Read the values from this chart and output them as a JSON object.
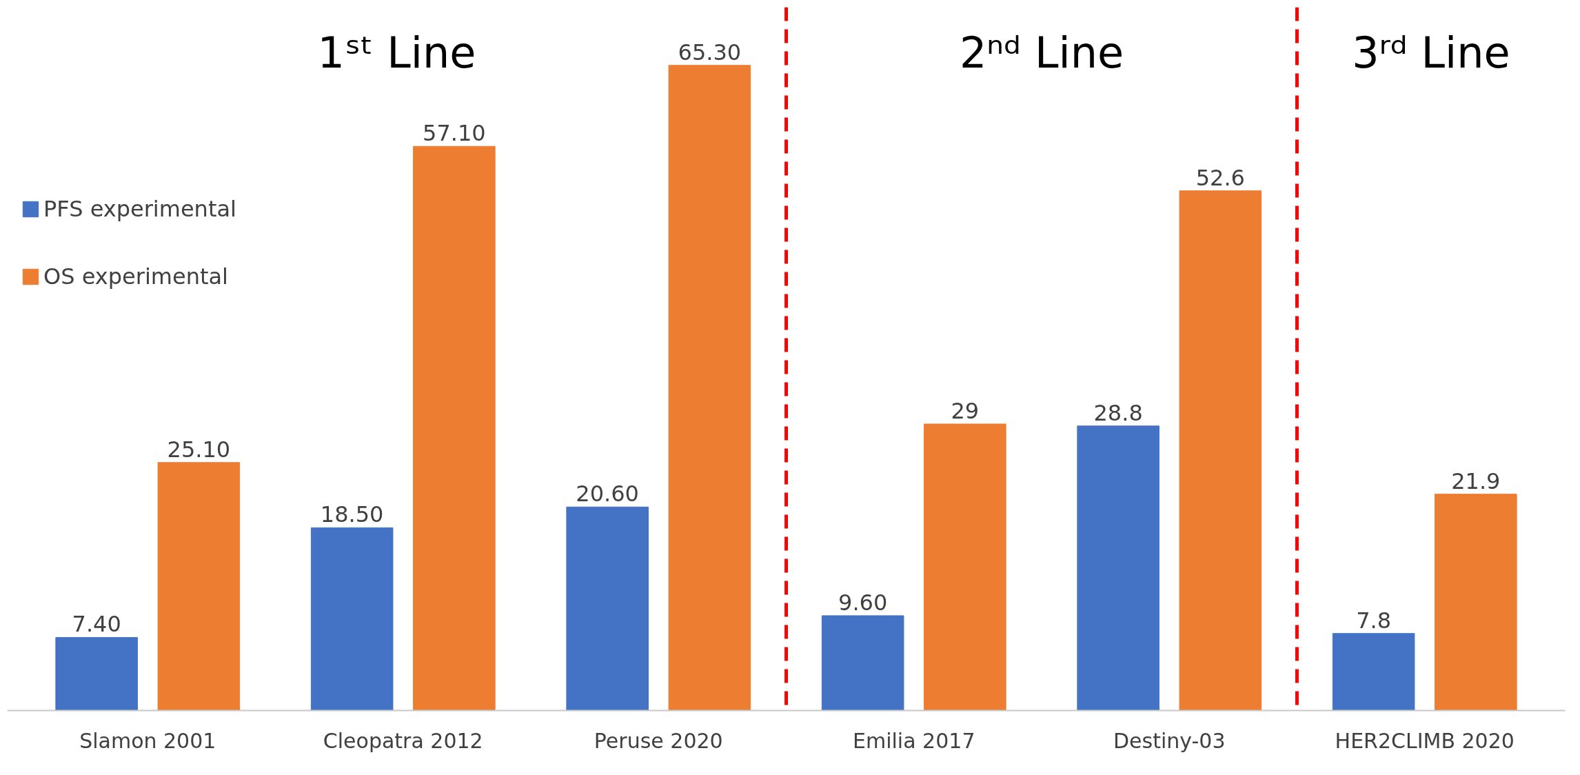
{
  "chart_data": {
    "type": "bar",
    "categories": [
      "Slamon 2001",
      "Cleopatra 2012",
      "Peruse 2020",
      "Emilia 2017",
      "Destiny-03",
      "HER2CLIMB 2020"
    ],
    "series": [
      {
        "name": "PFS experimental",
        "color": "#4472c4",
        "values": [
          7.4,
          18.5,
          20.6,
          9.6,
          28.8,
          7.8
        ],
        "value_labels": [
          "7.40",
          "18.50",
          "20.60",
          "9.60",
          "28.8",
          "7.8"
        ]
      },
      {
        "name": "OS experimental",
        "color": "#ed7d31",
        "values": [
          25.1,
          57.1,
          65.3,
          29,
          52.6,
          21.9
        ],
        "value_labels": [
          "25.10",
          "57.10",
          "65.30",
          "29",
          "52.6",
          "21.9"
        ]
      }
    ],
    "annotations": [
      "1ˢᵗ Line",
      "2ⁿᵈ Line",
      "3ʳᵈ Line"
    ],
    "legend": "top left"
  }
}
